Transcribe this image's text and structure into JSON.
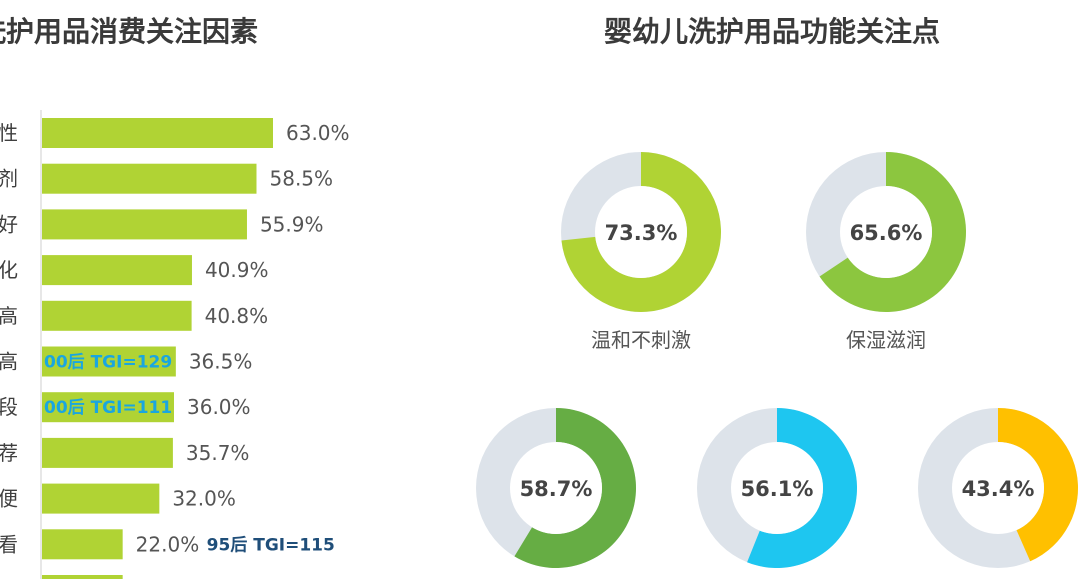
{
  "left_chart": {
    "title": "洗护用品消费关注因素"
  },
  "right_chart": {
    "title": "婴幼儿洗护用品功能关注点"
  },
  "chart_data": [
    {
      "type": "bar",
      "orientation": "horizontal",
      "title": "洗护用品消费关注因素",
      "categories": [
        "性",
        "剂",
        "好",
        "化",
        "高",
        "高",
        "段",
        "荐",
        "便",
        "看",
        ""
      ],
      "values": [
        63.0,
        58.5,
        55.9,
        40.9,
        40.8,
        36.5,
        36.0,
        35.7,
        32.0,
        22.0,
        null
      ],
      "value_labels": [
        "63.0%",
        "58.5%",
        "55.9%",
        "40.9%",
        "40.8%",
        "36.5%",
        "36.0%",
        "35.7%",
        "32.0%",
        "22.0%",
        ""
      ],
      "annotations": [
        {
          "index": 5,
          "text": "00后 TGI=129",
          "placement": "inside"
        },
        {
          "index": 6,
          "text": "00后 TGI=111",
          "placement": "inside"
        },
        {
          "index": 9,
          "text": "95后 TGI=115",
          "placement": "outside"
        }
      ],
      "bar_color": "#b0d334",
      "tgi_inside_color": "#1aa6e0",
      "tgi_outside_color": "#1f4e79"
    },
    {
      "type": "pie",
      "style": "donut",
      "title": "婴幼儿洗护用品功能关注点",
      "items": [
        {
          "label": "温和不刺激",
          "value": 73.3,
          "value_label": "73.3%",
          "color": "#b0d334"
        },
        {
          "label": "保湿滋润",
          "value": 65.6,
          "value_label": "65.6%",
          "color": "#8cc63f"
        },
        {
          "label": "",
          "value": 58.7,
          "value_label": "58.7%",
          "color": "#66ad44"
        },
        {
          "label": "",
          "value": 56.1,
          "value_label": "56.1%",
          "color": "#1ec6f0"
        },
        {
          "label": "",
          "value": 43.4,
          "value_label": "43.4%",
          "color": "#ffc000"
        }
      ],
      "track_color": "#dde3ea"
    }
  ]
}
